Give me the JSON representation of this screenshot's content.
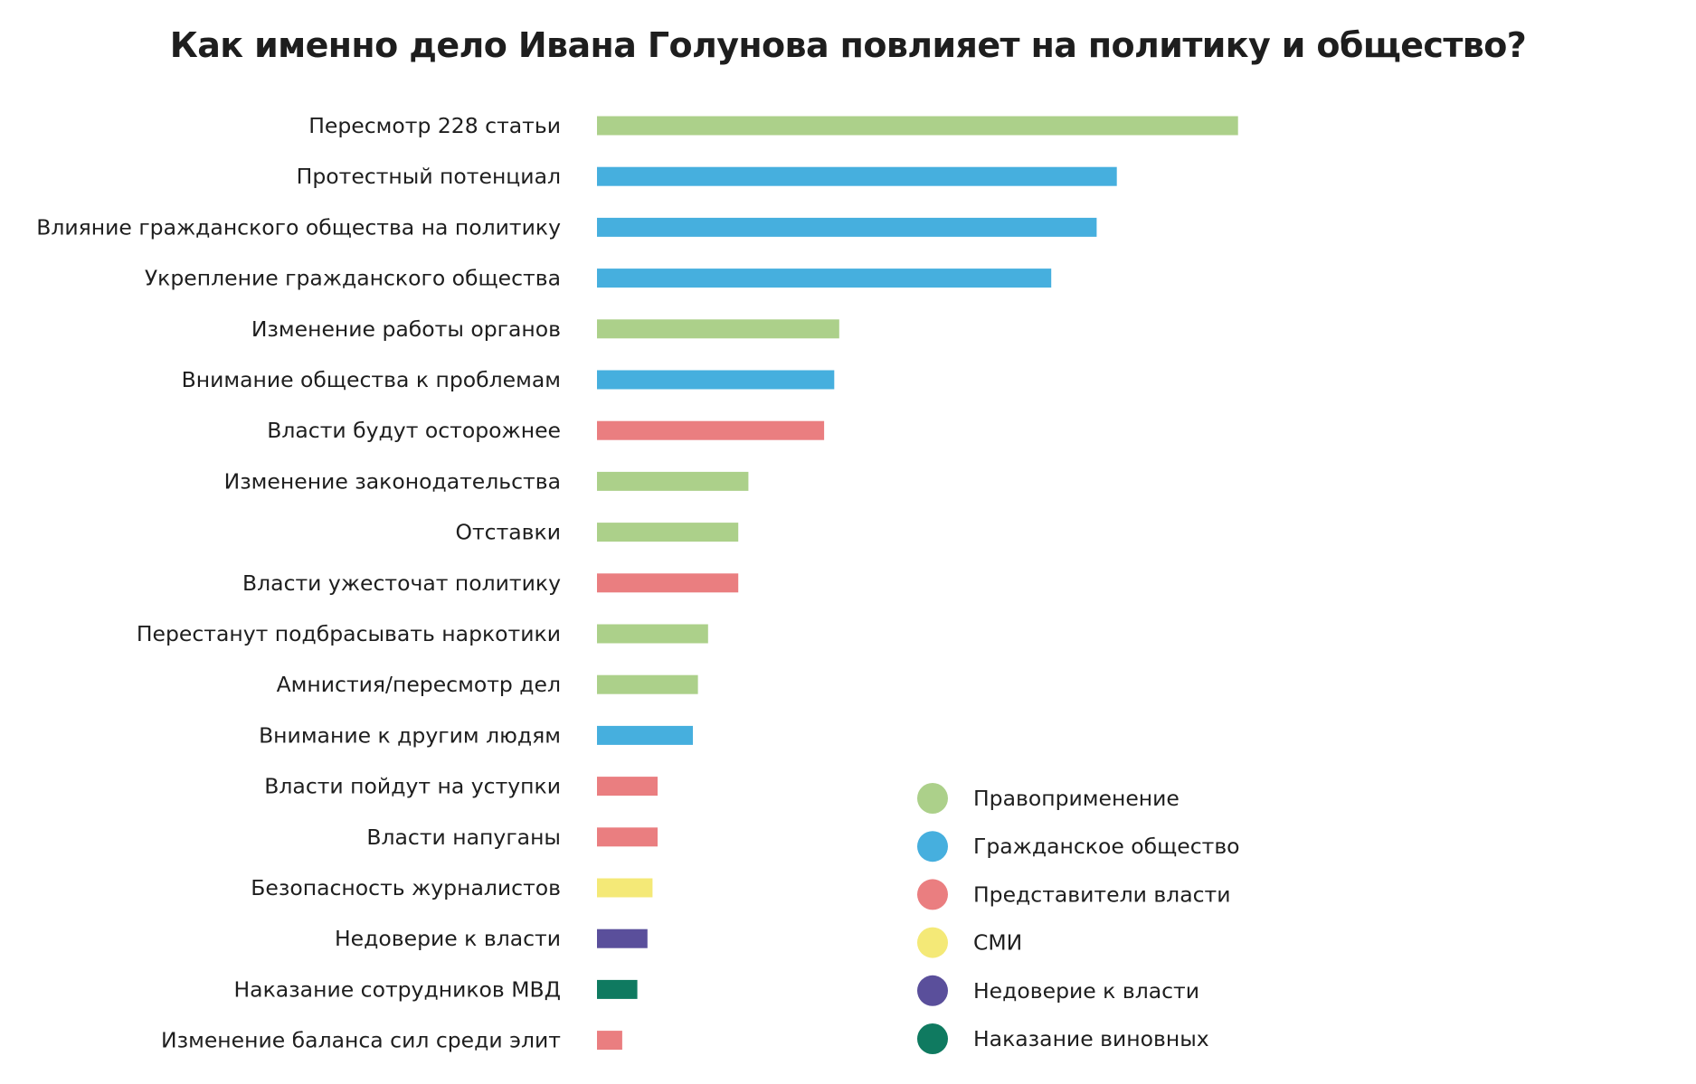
{
  "chart_data": {
    "type": "bar",
    "orientation": "horizontal",
    "title": "Как именно дело Ивана Голунова повлияет на политику и общество?",
    "xlabel": "",
    "ylabel": "",
    "grid": false,
    "axes_visible": false,
    "value_scale_note": "No axis shown; values are relative bar lengths estimated in arbitrary units",
    "xlim": [
      0,
      130
    ],
    "legend_placement": "bottom-right",
    "groups": [
      {
        "key": "enforcement",
        "name": "Правоприменение",
        "color": "#acd08a"
      },
      {
        "key": "civil",
        "name": "Гражданское общество",
        "color": "#46afde"
      },
      {
        "key": "authorities",
        "name": "Представители власти",
        "color": "#ea7e80"
      },
      {
        "key": "media",
        "name": "СМИ",
        "color": "#f4e977"
      },
      {
        "key": "distrust",
        "name": "Недоверие к власти",
        "color": "#5a4f9b"
      },
      {
        "key": "punishment",
        "name": "Наказание виновных",
        "color": "#0f7a60"
      }
    ],
    "categories": [
      "Пересмотр 228 статьи",
      "Протестный потенциал",
      "Влияние гражданского общества на политику",
      "Укрепление гражданского общества",
      "Изменение работы органов",
      "Внимание общества к проблемам",
      "Власти будут осторожнее",
      "Изменение законодательства",
      "Отставки",
      "Власти ужесточат политику",
      "Перестанут подбрасывать наркотики",
      "Амнистия/пересмотр дел",
      "Внимание к другим людям",
      "Власти пойдут на уступки",
      "Власти напуганы",
      "Безопасность журналистов",
      "Недоверие к власти",
      "Наказание сотрудников МВД",
      "Изменение баланса сил среди элит"
    ],
    "values": [
      127,
      103,
      99,
      90,
      48,
      47,
      45,
      30,
      28,
      28,
      22,
      20,
      19,
      12,
      12,
      11,
      10,
      8,
      5
    ],
    "bar_groups": [
      "enforcement",
      "civil",
      "civil",
      "civil",
      "enforcement",
      "civil",
      "authorities",
      "enforcement",
      "enforcement",
      "authorities",
      "enforcement",
      "enforcement",
      "civil",
      "authorities",
      "authorities",
      "media",
      "distrust",
      "punishment",
      "authorities"
    ]
  }
}
